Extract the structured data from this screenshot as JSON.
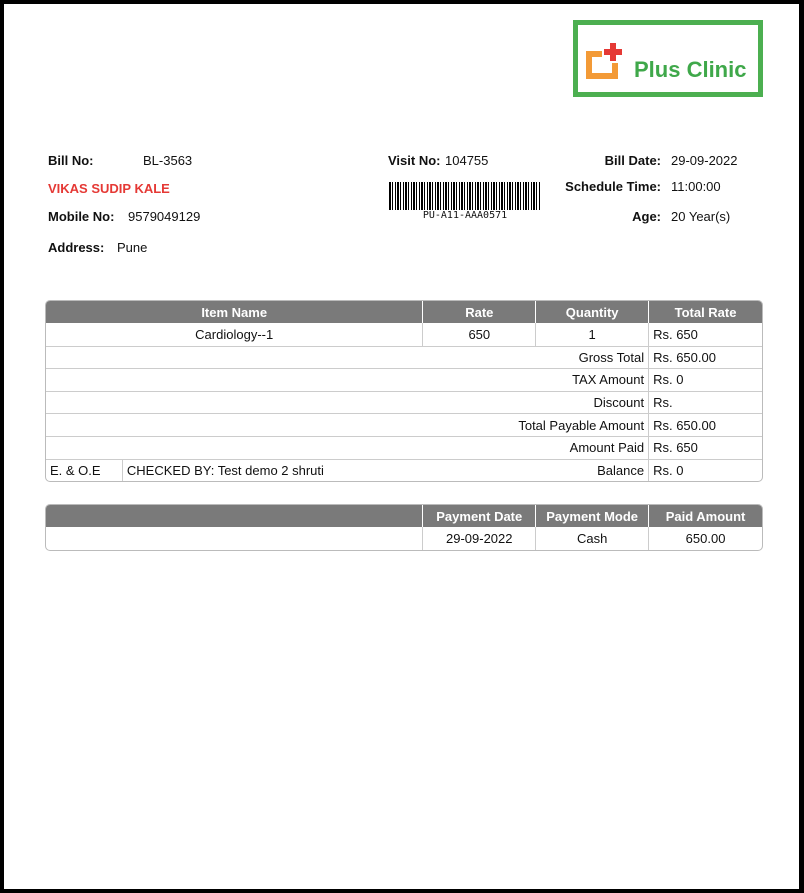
{
  "logo": {
    "text": "Plus Clinic",
    "border_color": "#4caf50"
  },
  "patient": {
    "bill_no_label": "Bill No:",
    "bill_no": "BL-3563",
    "name": "VIKAS SUDIP  KALE",
    "name_color": "#e53935",
    "mobile_label": "Mobile No:",
    "mobile": "9579049129",
    "address_label": "Address:",
    "address": "Pune"
  },
  "visit": {
    "visit_no_label": "Visit No:",
    "visit_no": "104755",
    "barcode_text": "PU-A11-AAA0571"
  },
  "bill": {
    "date_label": "Bill Date:",
    "date": "29-09-2022",
    "schedule_label": "Schedule Time:",
    "schedule": "11:00:00",
    "age_label": "Age:",
    "age": "20 Year(s)"
  },
  "items": {
    "headers": [
      "Item Name",
      "Rate",
      "Quantity",
      "Total Rate"
    ],
    "rows": [
      {
        "name": "Cardiology--1",
        "rate": "650",
        "qty": "1",
        "total": "Rs. 650"
      }
    ],
    "summary": [
      {
        "label": "Gross Total",
        "value": "Rs. 650.00"
      },
      {
        "label": "TAX Amount",
        "value": "Rs. 0"
      },
      {
        "label": "Discount",
        "value": "Rs."
      },
      {
        "label": "Total Payable Amount",
        "value": "Rs. 650.00"
      },
      {
        "label": "Amount Paid",
        "value": "Rs. 650"
      }
    ],
    "eoe": "E. & O.E",
    "checked_by": "CHECKED BY: Test demo 2  shruti",
    "balance_label": "Balance",
    "balance": "Rs. 0"
  },
  "payments": {
    "headers": [
      "",
      "Payment Date",
      "Payment Mode",
      "Paid Amount"
    ],
    "rows": [
      {
        "date": "29-09-2022",
        "mode": "Cash",
        "amount": "650.00"
      }
    ]
  }
}
